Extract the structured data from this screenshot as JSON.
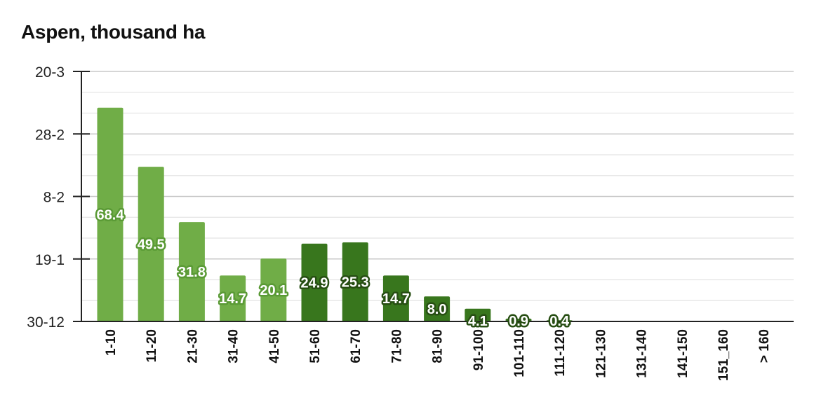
{
  "chart_data": {
    "type": "bar",
    "title": "Aspen, thousand ha",
    "xlabel": "",
    "ylabel": "",
    "categories": [
      "1-10",
      "11-20",
      "21-30",
      "31-40",
      "41-50",
      "51-60",
      "61-70",
      "71-80",
      "81-90",
      "91-100",
      "101-110",
      "111-120",
      "121-130",
      "131-140",
      "141-150",
      "151_160",
      "> 160"
    ],
    "values": [
      68.4,
      49.5,
      31.8,
      14.7,
      20.1,
      24.9,
      25.3,
      14.7,
      8.0,
      4.1,
      0.9,
      0.4,
      0,
      0,
      0,
      0,
      0
    ],
    "value_labels": [
      "68.4",
      "49.5",
      "31.8",
      "14.7",
      "20.1",
      "24.9",
      "25.3",
      "14.7",
      "8.0",
      "4.1",
      "0.9",
      "0.4",
      "",
      "",
      "",
      "",
      ""
    ],
    "y_tick_labels": [
      "30-12",
      "19-1",
      "8-2",
      "28-2",
      "20-3"
    ],
    "ylim": [
      0,
      80
    ],
    "grid": true,
    "legend": "none",
    "colors": {
      "light_green": "#70ad47",
      "dark_green": "#38761d",
      "light_outline": "#5a9a35",
      "dark_outline": "#274e13",
      "grid_major": "#c8c8c8",
      "grid_minor": "#e4e4e4",
      "axis": "#222222"
    },
    "bar_color_keys": [
      "light",
      "light",
      "light",
      "light",
      "light",
      "dark",
      "dark",
      "dark",
      "dark",
      "dark",
      "dark",
      "dark",
      "dark",
      "dark",
      "dark",
      "dark",
      "dark"
    ]
  }
}
